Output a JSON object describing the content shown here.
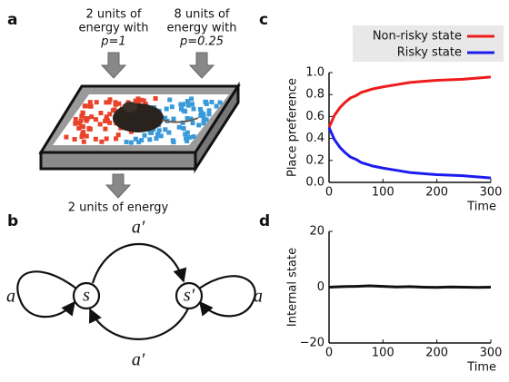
{
  "panel_labels": [
    "a",
    "b",
    "c",
    "d"
  ],
  "diagram_a": {
    "input_left": [
      "2 units of",
      "energy with",
      "p=1"
    ],
    "input_right": [
      "8 units of",
      "energy with",
      "p=0.25"
    ],
    "output": "2 units of energy"
  },
  "diagram_b": {
    "states": [
      "s",
      "s′"
    ],
    "actions": [
      "a",
      "a′",
      "a′",
      "a"
    ]
  },
  "chart_data": [
    {
      "type": "line",
      "ylabel": "Place preference",
      "xlabel": "Time",
      "x": [
        0,
        10,
        20,
        30,
        40,
        50,
        60,
        80,
        100,
        125,
        150,
        175,
        200,
        250,
        300
      ],
      "series": [
        {
          "name": "Non-risky state",
          "color": "#ee1c1c",
          "values": [
            0.5,
            0.61,
            0.68,
            0.73,
            0.77,
            0.79,
            0.82,
            0.85,
            0.87,
            0.89,
            0.91,
            0.92,
            0.93,
            0.94,
            0.96
          ]
        },
        {
          "name": "Risky state",
          "color": "#1c1cee",
          "values": [
            0.5,
            0.39,
            0.32,
            0.27,
            0.23,
            0.21,
            0.18,
            0.15,
            0.13,
            0.11,
            0.09,
            0.08,
            0.07,
            0.06,
            0.04
          ]
        }
      ],
      "xlim": [
        0,
        300
      ],
      "ylim": [
        0,
        1
      ],
      "xticks": [
        0,
        100,
        200,
        300
      ],
      "yticks": [
        {
          "value": 0,
          "label": "0.0"
        },
        0.2,
        0.4,
        0.6,
        0.8,
        {
          "value": 1,
          "label": "1.0"
        }
      ]
    },
    {
      "type": "line",
      "ylabel": "Internal state",
      "xlabel": "Time",
      "x": [
        0,
        25,
        50,
        75,
        100,
        125,
        150,
        175,
        200,
        225,
        250,
        275,
        300
      ],
      "series": [
        {
          "color": "#111111",
          "values": [
            0,
            0.2,
            0.3,
            0.5,
            0.3,
            0.1,
            0.2,
            0,
            -0.1,
            0.1,
            0,
            -0.1,
            0
          ]
        }
      ],
      "xlim": [
        0,
        300
      ],
      "ylim": [
        -20,
        20
      ],
      "xticks": [
        0,
        100,
        200,
        300
      ],
      "yticks": [
        {
          "value": -20,
          "label": "−20"
        },
        0,
        20
      ]
    }
  ]
}
